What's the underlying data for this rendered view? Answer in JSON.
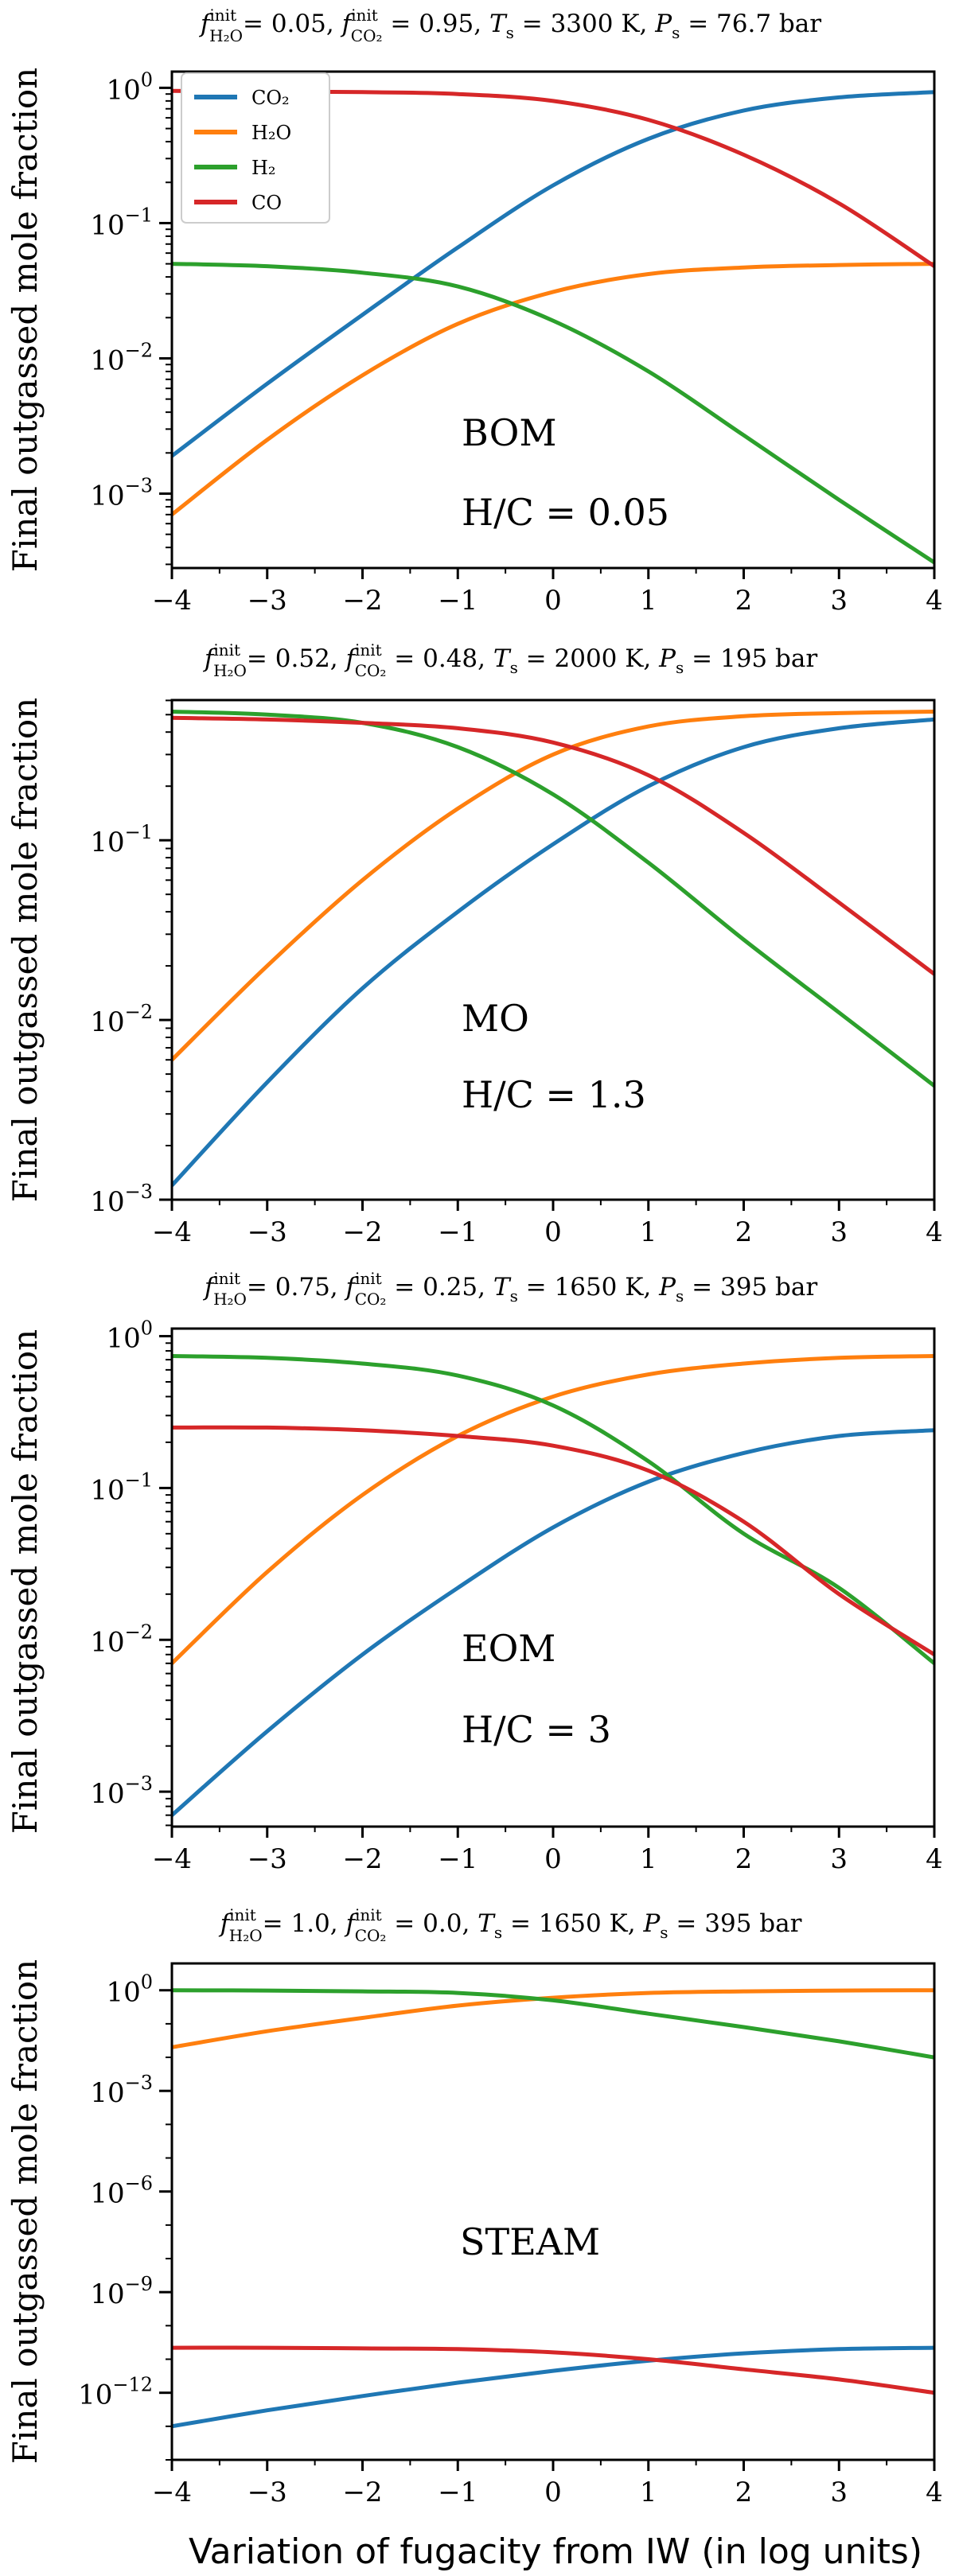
{
  "figure": {
    "xlabel": "Variation of fugacity from IW (in log units)",
    "ylabel": "Final outgassed mole fraction"
  },
  "legend": {
    "entries": [
      "CO₂",
      "H₂O",
      "H₂",
      "CO"
    ],
    "colors": [
      "#1f77b4",
      "#ff7f0e",
      "#2ca02c",
      "#d62728"
    ]
  },
  "chart_data": [
    {
      "type": "line",
      "title": "f^init_H₂O = 0.05, f^init_CO₂ = 0.95, T_s = 3300 K, P_s = 76.7 bar",
      "title_parts": [
        "0.05",
        "0.95",
        "3300",
        "76.7"
      ],
      "annotations": [
        "BOM",
        "H/C = 0.05"
      ],
      "xlabel": "",
      "ylabel": "Final outgassed mole fraction",
      "xlim": [
        -4,
        4
      ],
      "ylim_log10": [
        -3.55,
        0.12
      ],
      "x_ticks": [
        -4,
        -3,
        -2,
        -1,
        0,
        1,
        2,
        3,
        4
      ],
      "x_tick_labels": [
        "−4",
        "−3",
        "−2",
        "−1",
        "0",
        "1",
        "2",
        "3",
        "4"
      ],
      "y_tick_exponents": [
        0,
        -1,
        -2,
        -3
      ],
      "y_tick_labels": [
        "10^0",
        "10^-1",
        "10^-2",
        "10^-3"
      ],
      "x": [
        -4,
        -3,
        -2,
        -1,
        0,
        1,
        2,
        3,
        4
      ],
      "series": [
        {
          "name": "CO₂",
          "color": "#1f77b4",
          "values": [
            0.0019,
            0.0065,
            0.021,
            0.066,
            0.19,
            0.42,
            0.68,
            0.85,
            0.93
          ]
        },
        {
          "name": "H₂O",
          "color": "#ff7f0e",
          "values": [
            0.0007,
            0.0025,
            0.0075,
            0.018,
            0.031,
            0.042,
            0.047,
            0.049,
            0.05
          ]
        },
        {
          "name": "H₂",
          "color": "#2ca02c",
          "values": [
            0.05,
            0.048,
            0.043,
            0.034,
            0.019,
            0.008,
            0.0027,
            0.0009,
            0.00031
          ]
        },
        {
          "name": "CO",
          "color": "#d62728",
          "values": [
            0.95,
            0.94,
            0.93,
            0.9,
            0.8,
            0.58,
            0.32,
            0.14,
            0.048
          ]
        }
      ]
    },
    {
      "type": "line",
      "title": "f^init_H₂O = 0.52, f^init_CO₂ = 0.48, T_s = 2000 K, P_s = 195 bar",
      "title_parts": [
        "0.52",
        "0.48",
        "2000",
        "195"
      ],
      "annotations": [
        "MO",
        "H/C = 1.3"
      ],
      "xlabel": "",
      "ylabel": "Final outgassed mole fraction",
      "xlim": [
        -4,
        4
      ],
      "ylim_log10": [
        -3.0,
        -0.22
      ],
      "x_ticks": [
        -4,
        -3,
        -2,
        -1,
        0,
        1,
        2,
        3,
        4
      ],
      "x_tick_labels": [
        "−4",
        "−3",
        "−2",
        "−1",
        "0",
        "1",
        "2",
        "3",
        "4"
      ],
      "y_tick_exponents": [
        -1,
        -2,
        -3
      ],
      "y_tick_labels": [
        "10^-1",
        "10^-2",
        "10^-3"
      ],
      "x": [
        -4,
        -3,
        -2,
        -1,
        0,
        1,
        2,
        3,
        4
      ],
      "series": [
        {
          "name": "CO₂",
          "color": "#1f77b4",
          "values": [
            0.0012,
            0.0045,
            0.015,
            0.04,
            0.095,
            0.2,
            0.33,
            0.42,
            0.47
          ]
        },
        {
          "name": "H₂O",
          "color": "#ff7f0e",
          "values": [
            0.006,
            0.02,
            0.06,
            0.15,
            0.3,
            0.43,
            0.49,
            0.51,
            0.52
          ]
        },
        {
          "name": "H₂",
          "color": "#2ca02c",
          "values": [
            0.52,
            0.5,
            0.45,
            0.33,
            0.18,
            0.075,
            0.028,
            0.011,
            0.0043
          ]
        },
        {
          "name": "CO",
          "color": "#d62728",
          "values": [
            0.48,
            0.47,
            0.45,
            0.42,
            0.35,
            0.23,
            0.11,
            0.045,
            0.018
          ]
        }
      ]
    },
    {
      "type": "line",
      "title": "f^init_H₂O = 0.75, f^init_CO₂ = 0.25, T_s = 1650 K, P_s = 395 bar",
      "title_parts": [
        "0.75",
        "0.25",
        "1650",
        "395"
      ],
      "annotations": [
        "EOM",
        "H/C = 3"
      ],
      "xlabel": "",
      "ylabel": "Final outgassed mole fraction",
      "xlim": [
        -4,
        4
      ],
      "ylim_log10": [
        -3.23,
        0.05
      ],
      "x_ticks": [
        -4,
        -3,
        -2,
        -1,
        0,
        1,
        2,
        3,
        4
      ],
      "x_tick_labels": [
        "−4",
        "−3",
        "−2",
        "−1",
        "0",
        "1",
        "2",
        "3",
        "4"
      ],
      "y_tick_exponents": [
        0,
        -1,
        -2,
        -3
      ],
      "y_tick_labels": [
        "10^0",
        "10^-1",
        "10^-2",
        "10^-3"
      ],
      "x": [
        -4,
        -3,
        -2,
        -1,
        0,
        1,
        2,
        3,
        4
      ],
      "series": [
        {
          "name": "CO₂",
          "color": "#1f77b4",
          "values": [
            0.0007,
            0.0025,
            0.008,
            0.022,
            0.055,
            0.11,
            0.17,
            0.22,
            0.24
          ]
        },
        {
          "name": "H₂O",
          "color": "#ff7f0e",
          "values": [
            0.007,
            0.028,
            0.09,
            0.22,
            0.4,
            0.56,
            0.66,
            0.72,
            0.74
          ]
        },
        {
          "name": "H₂",
          "color": "#2ca02c",
          "values": [
            0.74,
            0.72,
            0.66,
            0.55,
            0.35,
            0.15,
            0.05,
            0.022,
            0.007
          ]
        },
        {
          "name": "CO",
          "color": "#d62728",
          "values": [
            0.25,
            0.25,
            0.24,
            0.22,
            0.19,
            0.13,
            0.06,
            0.02,
            0.008
          ]
        }
      ]
    },
    {
      "type": "line",
      "title": "f^init_H₂O = 1.0, f^init_CO₂ = 0.0, T_s = 1650 K, P_s = 395 bar",
      "title_parts": [
        "1.0",
        "0.0",
        "1650",
        "395"
      ],
      "annotations": [
        "STEAM"
      ],
      "xlabel": "Variation of fugacity from IW (in log units)",
      "ylabel": "Final outgassed mole fraction",
      "xlim": [
        -4,
        4
      ],
      "ylim_log10": [
        -14.0,
        0.8
      ],
      "x_ticks": [
        -4,
        -3,
        -2,
        -1,
        0,
        1,
        2,
        3,
        4
      ],
      "x_tick_labels": [
        "−4",
        "−3",
        "−2",
        "−1",
        "0",
        "1",
        "2",
        "3",
        "4"
      ],
      "y_tick_exponents": [
        0,
        -3,
        -6,
        -9,
        -12
      ],
      "y_tick_labels": [
        "10^0",
        "10^-3",
        "10^-6",
        "10^-9",
        "10^-12"
      ],
      "x": [
        -4,
        -3,
        -2,
        -1,
        0,
        1,
        2,
        3,
        4
      ],
      "series": [
        {
          "name": "CO₂",
          "color": "#1f77b4",
          "values": [
            1e-13,
            3e-13,
            8e-13,
            2e-12,
            4.5e-12,
            9e-12,
            1.5e-11,
            2e-11,
            2.2e-11
          ]
        },
        {
          "name": "H₂O",
          "color": "#ff7f0e",
          "values": [
            0.02,
            0.06,
            0.15,
            0.35,
            0.6,
            0.83,
            0.93,
            0.98,
            1.0
          ]
        },
        {
          "name": "H₂",
          "color": "#2ca02c",
          "values": [
            1.0,
            0.98,
            0.93,
            0.83,
            0.5,
            0.2,
            0.08,
            0.03,
            0.01
          ]
        },
        {
          "name": "CO",
          "color": "#d62728",
          "values": [
            2.2e-11,
            2.2e-11,
            2.1e-11,
            2e-11,
            1.6e-11,
            1e-11,
            5e-12,
            2.5e-12,
            1e-12
          ]
        }
      ]
    }
  ]
}
